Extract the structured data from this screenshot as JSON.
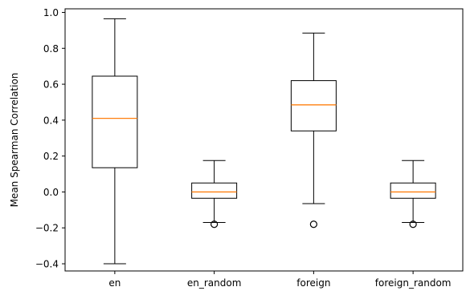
{
  "chart_data": {
    "type": "box",
    "title": "",
    "xlabel": "",
    "ylabel": "Mean Spearman Correlation",
    "ylim": [
      -0.44,
      1.02
    ],
    "yticks": [
      -0.4,
      -0.2,
      0.0,
      0.2,
      0.4,
      0.6,
      0.8,
      1.0
    ],
    "ytick_labels": [
      "−0.4",
      "−0.2",
      "0.0",
      "0.2",
      "0.4",
      "0.6",
      "0.8",
      "1.0"
    ],
    "grid": false,
    "categories": [
      "en",
      "en_random",
      "foreign",
      "foreign_random"
    ],
    "boxes": [
      {
        "category": "en",
        "whisker_low": -0.4,
        "q1": 0.135,
        "median": 0.41,
        "q3": 0.645,
        "whisker_high": 0.965,
        "outliers": []
      },
      {
        "category": "en_random",
        "whisker_low": -0.17,
        "q1": -0.035,
        "median": 0.0,
        "q3": 0.05,
        "whisker_high": 0.175,
        "outliers": [
          -0.18
        ]
      },
      {
        "category": "foreign",
        "whisker_low": -0.065,
        "q1": 0.34,
        "median": 0.485,
        "q3": 0.62,
        "whisker_high": 0.885,
        "outliers": [
          -0.18
        ]
      },
      {
        "category": "foreign_random",
        "whisker_low": -0.17,
        "q1": -0.035,
        "median": 0.0,
        "q3": 0.05,
        "whisker_high": 0.175,
        "outliers": [
          -0.18
        ]
      }
    ],
    "colors": {
      "box": "#000000",
      "median": "#ff7f0e",
      "outlier_edge": "#000000"
    }
  }
}
